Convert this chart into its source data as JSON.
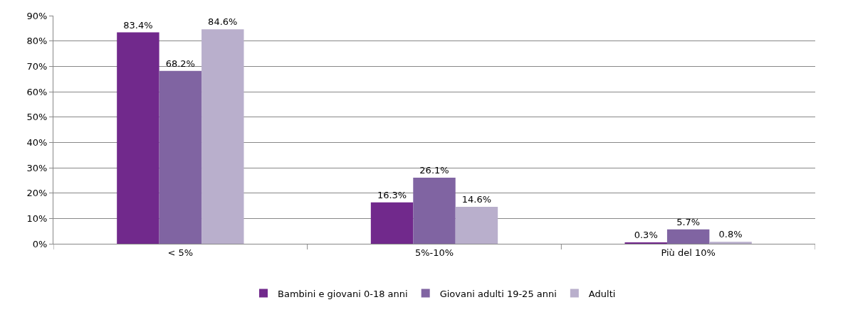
{
  "chart_data": {
    "type": "bar",
    "categories": [
      "< 5%",
      "5%-10%",
      "Più del 10%"
    ],
    "series": [
      {
        "name": "Bambini e giovani 0-18 anni",
        "color": "#71298c",
        "values": [
          83.4,
          16.3,
          0.3
        ],
        "value_labels": [
          "83.4%",
          "16.3%",
          "0.3%"
        ]
      },
      {
        "name": "Giovani adulti 19-25 anni",
        "color": "#8064a2",
        "values": [
          68.2,
          26.1,
          5.7
        ],
        "value_labels": [
          "68.2%",
          "26.1%",
          "5.7%"
        ]
      },
      {
        "name": "Adulti",
        "color": "#b9afcc",
        "values": [
          84.6,
          14.6,
          0.8
        ],
        "value_labels": [
          "84.6%",
          "14.6%",
          "0.8%"
        ]
      }
    ],
    "ylim": [
      0,
      90
    ],
    "yticks": [
      {
        "value": 0,
        "label": "0%"
      },
      {
        "value": 10,
        "label": "10%"
      },
      {
        "value": 20,
        "label": "20%"
      },
      {
        "value": 30,
        "label": "30%"
      },
      {
        "value": 40,
        "label": "40%"
      },
      {
        "value": 50,
        "label": "50%"
      },
      {
        "value": 60,
        "label": "60%"
      },
      {
        "value": 70,
        "label": "70%"
      },
      {
        "value": 80,
        "label": "80%"
      },
      {
        "value": 90,
        "label": "90%"
      }
    ],
    "grid": "y",
    "legend": "bottom"
  }
}
